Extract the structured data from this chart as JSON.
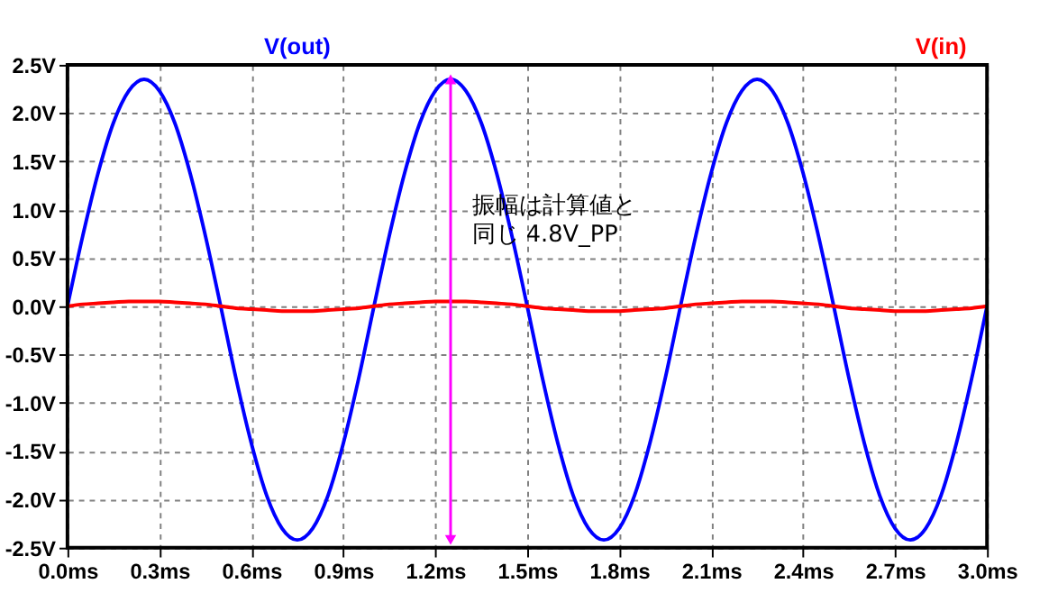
{
  "chart_data": {
    "type": "line",
    "x": [
      0,
      0.05,
      0.1,
      0.15,
      0.2,
      0.25,
      0.3,
      0.35,
      0.4,
      0.45,
      0.5,
      0.55,
      0.6,
      0.65,
      0.7,
      0.75,
      0.8,
      0.85,
      0.9,
      0.95,
      1.0,
      1.05,
      1.1,
      1.15,
      1.2,
      1.25,
      1.3,
      1.35,
      1.4,
      1.45,
      1.5,
      1.55,
      1.6,
      1.65,
      1.7,
      1.75,
      1.8,
      1.85,
      1.9,
      1.95,
      2.0,
      2.05,
      2.1,
      2.15,
      2.2,
      2.25,
      2.3,
      2.35,
      2.4,
      2.45,
      2.5,
      2.55,
      2.6,
      2.65,
      2.7,
      2.75,
      2.8,
      2.85,
      2.9,
      2.95,
      3.0
    ],
    "series": [
      {
        "name": "V(out)",
        "color": "#0000ff",
        "values": [
          0,
          0.73,
          1.38,
          1.9,
          2.23,
          2.35,
          2.23,
          1.9,
          1.38,
          0.73,
          0,
          -0.75,
          -1.42,
          -1.96,
          -2.3,
          -2.42,
          -2.3,
          -1.96,
          -1.42,
          -0.75,
          0,
          0.73,
          1.38,
          1.9,
          2.23,
          2.35,
          2.23,
          1.9,
          1.38,
          0.73,
          0,
          -0.75,
          -1.42,
          -1.96,
          -2.3,
          -2.42,
          -2.3,
          -1.96,
          -1.42,
          -0.75,
          0,
          0.73,
          1.38,
          1.9,
          2.23,
          2.35,
          2.23,
          1.9,
          1.38,
          0.73,
          0,
          -0.75,
          -1.42,
          -1.96,
          -2.3,
          -2.42,
          -2.3,
          -1.96,
          -1.42,
          -0.75,
          0
        ]
      },
      {
        "name": "V(in)",
        "color": "#ff0000",
        "values": [
          0,
          0.02,
          0.03,
          0.04,
          0.05,
          0.05,
          0.05,
          0.04,
          0.03,
          0.02,
          0,
          -0.02,
          -0.03,
          -0.04,
          -0.05,
          -0.05,
          -0.05,
          -0.04,
          -0.03,
          -0.02,
          0,
          0.02,
          0.03,
          0.04,
          0.05,
          0.05,
          0.05,
          0.04,
          0.03,
          0.02,
          0,
          -0.02,
          -0.03,
          -0.04,
          -0.05,
          -0.05,
          -0.05,
          -0.04,
          -0.03,
          -0.02,
          0,
          0.02,
          0.03,
          0.04,
          0.05,
          0.05,
          0.05,
          0.04,
          0.03,
          0.02,
          0,
          -0.02,
          -0.03,
          -0.04,
          -0.05,
          -0.05,
          -0.05,
          -0.04,
          -0.03,
          -0.02,
          0
        ]
      },
      {
        "type": "line",
        "color": "#ff00ff",
        "marker": "triangle",
        "x": [
          1.25,
          1.25
        ],
        "values": [
          -2.42,
          2.35
        ]
      }
    ],
    "xlim": [
      0,
      3.0
    ],
    "xticks": [
      {
        "value": 0,
        "label": "0.0ms"
      },
      {
        "value": 0.3,
        "label": "0.3ms"
      },
      {
        "value": 0.6,
        "label": "0.6ms"
      },
      {
        "value": 0.9,
        "label": "0.9ms"
      },
      {
        "value": 1.2,
        "label": "1.2ms"
      },
      {
        "value": 1.5,
        "label": "1.5ms"
      },
      {
        "value": 1.8,
        "label": "1.8ms"
      },
      {
        "value": 2.1,
        "label": "2.1ms"
      },
      {
        "value": 2.4,
        "label": "2.4ms"
      },
      {
        "value": 2.7,
        "label": "2.7ms"
      },
      {
        "value": 3.0,
        "label": "3.0ms"
      }
    ],
    "ylim": [
      -2.5,
      2.5
    ],
    "yticks": [
      {
        "value": -2.5,
        "label": "-2.5V"
      },
      {
        "value": -2.0,
        "label": "-2.0V"
      },
      {
        "value": -1.5,
        "label": "-1.5V"
      },
      {
        "value": -1.0,
        "label": "-1.0V"
      },
      {
        "value": -0.5,
        "label": "-0.5V"
      },
      {
        "value": 0,
        "label": "0.0V"
      },
      {
        "value": 0.5,
        "label": "0.5V"
      },
      {
        "value": 1.0,
        "label": "1.0V"
      },
      {
        "value": 1.5,
        "label": "1.5V"
      },
      {
        "value": 2.0,
        "label": "2.0V"
      },
      {
        "value": 2.5,
        "label": "2.5V"
      }
    ],
    "grid": true,
    "legend": "top",
    "annotations": [
      "振幅は計算値と同じ 4.8V_PP"
    ]
  }
}
